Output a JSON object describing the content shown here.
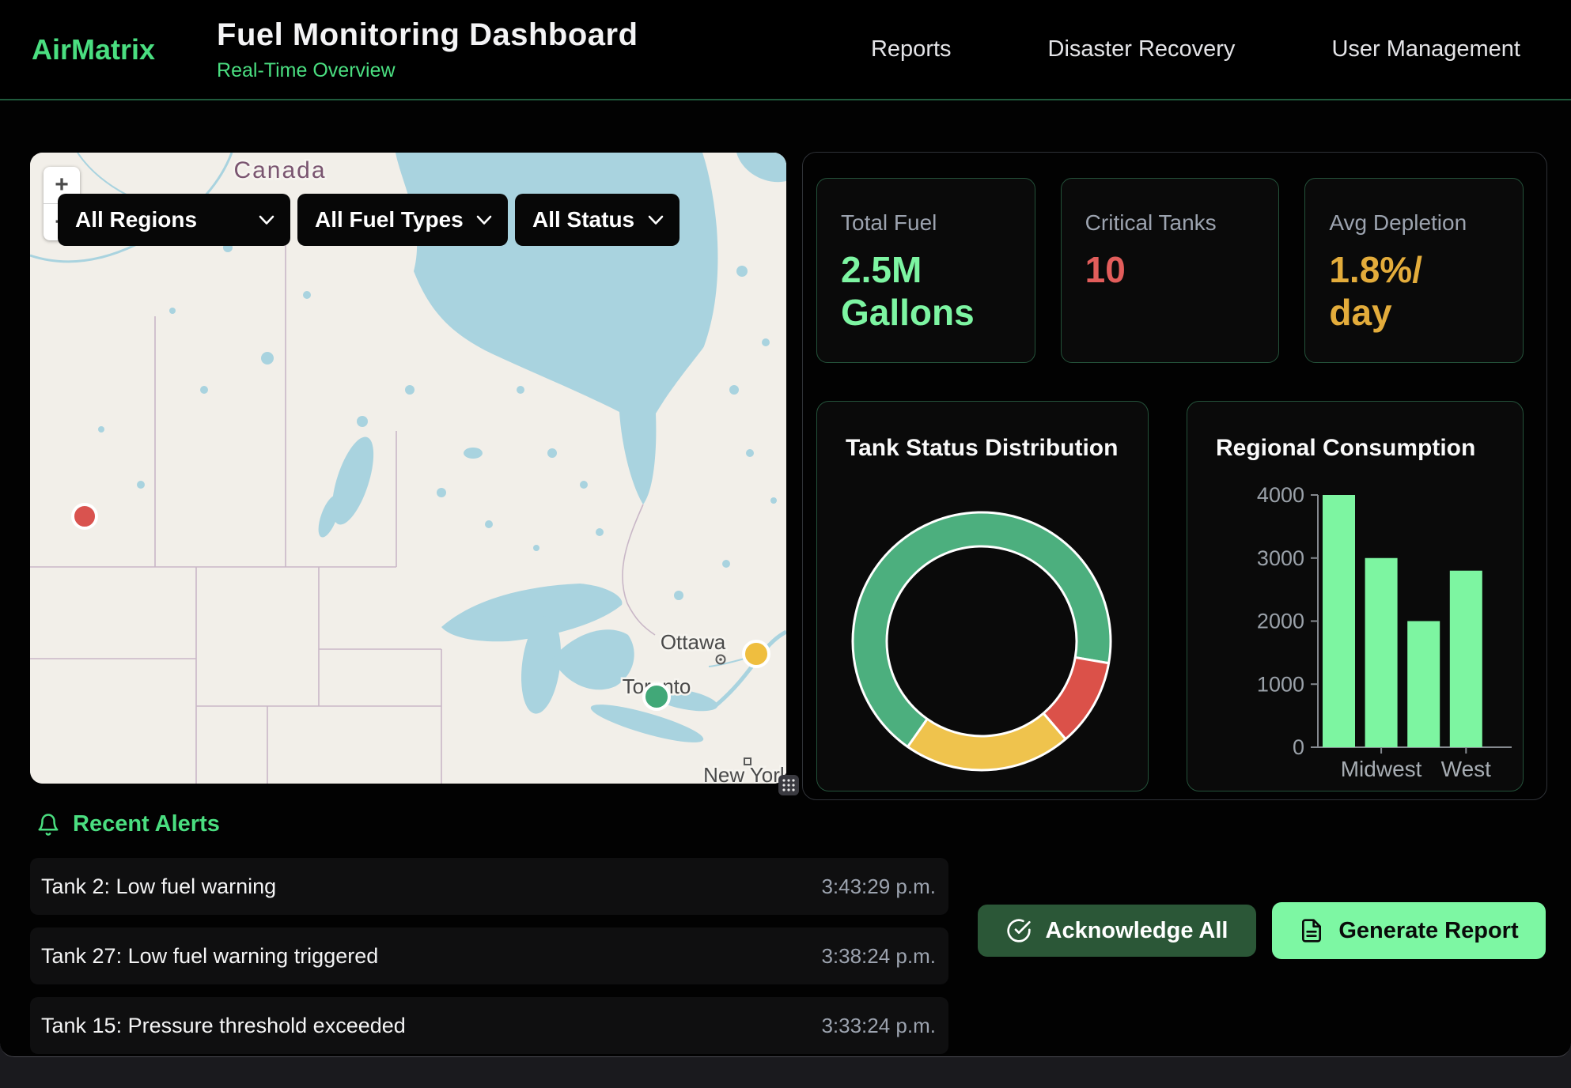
{
  "header": {
    "brand": "AirMatrix",
    "title": "Fuel Monitoring Dashboard",
    "subtitle": "Real-Time Overview",
    "nav": [
      {
        "label": "Reports"
      },
      {
        "label": "Disaster Recovery"
      },
      {
        "label": "User Management"
      }
    ]
  },
  "map": {
    "filters": [
      {
        "label": "All Regions"
      },
      {
        "label": "All Fuel Types"
      },
      {
        "label": "All Status"
      }
    ],
    "zoom_in": "+",
    "zoom_out": "−",
    "labels": {
      "country": "Canada",
      "city_ottawa": "Ottawa",
      "city_toronto": "Toronto",
      "city_new_york": "New York"
    },
    "markers": [
      {
        "status": "critical",
        "color": "#D9534F"
      },
      {
        "status": "normal",
        "color": "#41A878"
      },
      {
        "status": "warning",
        "color": "#EFBE3F"
      }
    ],
    "colors": {
      "land": "#F2EFE9",
      "water": "#A9D3DF",
      "border": "#C9B7C7"
    }
  },
  "stats": [
    {
      "label": "Total Fuel",
      "lines": [
        "2.5M",
        "Gallons"
      ],
      "color": "#7DF5A2"
    },
    {
      "label": "Critical Tanks",
      "lines": [
        "10"
      ],
      "color": "#E25D5B"
    },
    {
      "label": "Avg Depletion",
      "lines": [
        "1.8%/",
        "day"
      ],
      "color": "#E3AC3B"
    }
  ],
  "chart_data": [
    {
      "type": "doughnut",
      "title": "Tank Status Distribution",
      "segments": [
        {
          "label": "green-segment",
          "value": 68,
          "color": "#4CAF7E"
        },
        {
          "label": "red-segment",
          "value": 11,
          "color": "#DB5149"
        },
        {
          "label": "yellow-segment",
          "value": 21,
          "color": "#EFC34D"
        }
      ],
      "rotation_deg": 215,
      "legend": "none"
    },
    {
      "type": "bar",
      "title": "Regional Consumption",
      "values": [
        4000,
        3000,
        2000,
        2800
      ],
      "x_tick_labels": [
        {
          "label": "Midwest",
          "bar_index": 1
        },
        {
          "label": "West",
          "bar_index": 3
        }
      ],
      "ylim": [
        0,
        4000
      ],
      "ytick_step": 1000,
      "bar_color": "#7DF5A1",
      "grid": false
    }
  ],
  "alerts": {
    "title": "Recent Alerts",
    "items": [
      {
        "text": "Tank 2: Low fuel warning",
        "time": "3:43:29 p.m."
      },
      {
        "text": "Tank 27: Low fuel warning triggered",
        "time": "3:38:24 p.m."
      },
      {
        "text": "Tank 15: Pressure threshold exceeded",
        "time": "3:33:24 p.m."
      }
    ]
  },
  "actions": {
    "acknowledge_all": "Acknowledge All",
    "generate_report": "Generate Report"
  }
}
